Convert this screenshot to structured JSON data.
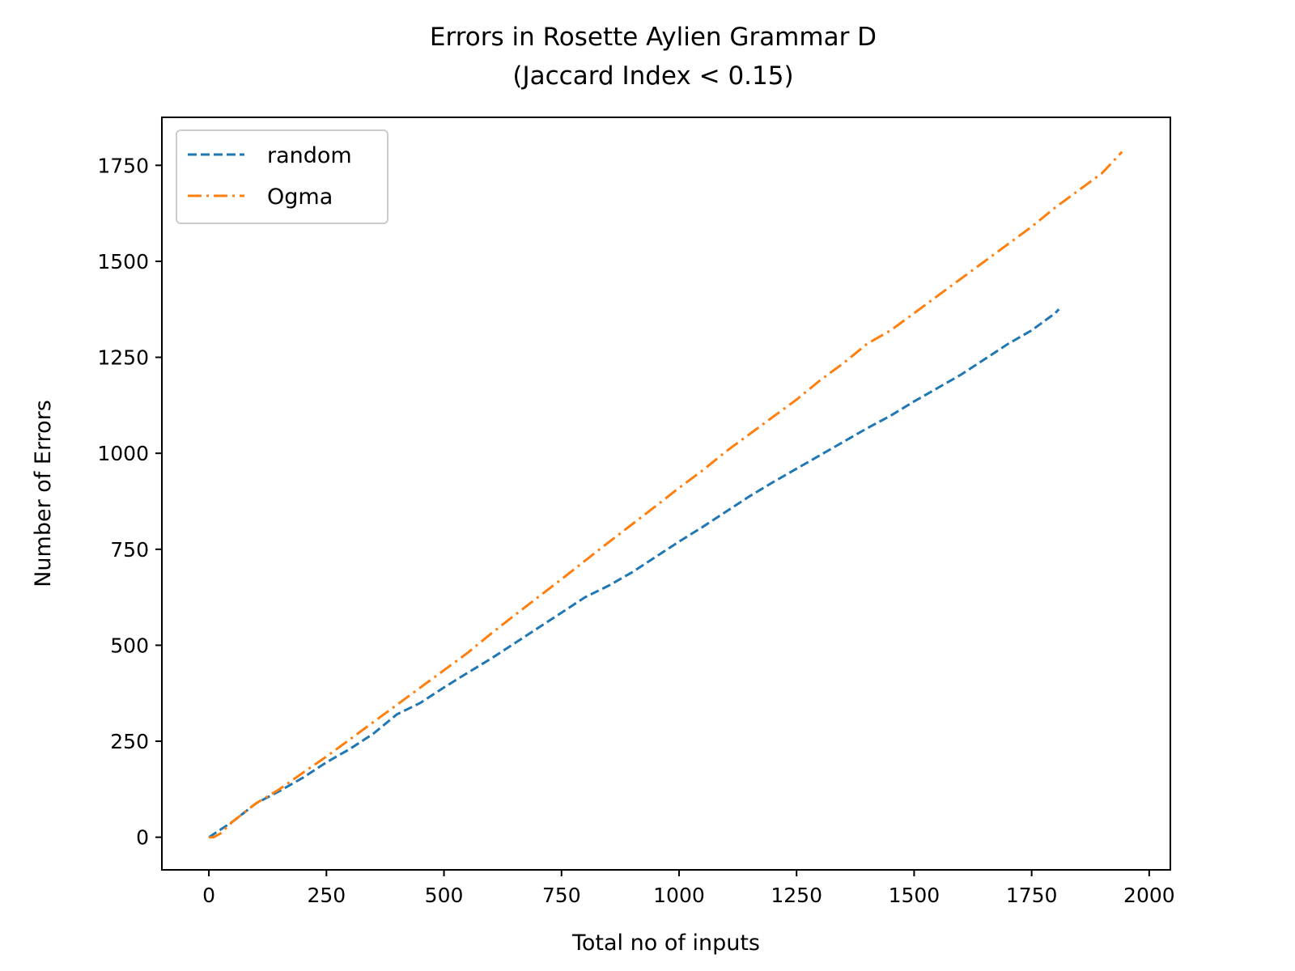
{
  "chart_data": {
    "type": "line",
    "title": "Errors in Rosette Aylien Grammar D",
    "subtitle": "(Jaccard Index < 0.15)",
    "xlabel": "Total no of inputs",
    "ylabel": "Number of Errors",
    "xlim": [
      -100,
      2045
    ],
    "ylim": [
      -85,
      1875
    ],
    "xticks": [
      0,
      250,
      500,
      750,
      1000,
      1250,
      1500,
      1750,
      2000
    ],
    "yticks": [
      0,
      250,
      500,
      750,
      1000,
      1250,
      1500,
      1750
    ],
    "xtick_labels": [
      "0",
      "250",
      "500",
      "750",
      "1000",
      "1250",
      "1500",
      "1750",
      "2000"
    ],
    "ytick_labels": [
      "0",
      "250",
      "500",
      "750",
      "1000",
      "1250",
      "1500",
      "1750"
    ],
    "grid": false,
    "legend_position": "top-left",
    "series": [
      {
        "name": "random",
        "color": "#1f77b4",
        "style": "dashed",
        "x": [
          0,
          50,
          100,
          150,
          200,
          250,
          300,
          350,
          400,
          450,
          500,
          550,
          600,
          650,
          700,
          750,
          800,
          850,
          900,
          950,
          1000,
          1050,
          1100,
          1150,
          1200,
          1250,
          1300,
          1350,
          1400,
          1450,
          1500,
          1550,
          1600,
          1650,
          1700,
          1750,
          1800,
          1808
        ],
        "y": [
          0,
          40,
          88,
          120,
          155,
          195,
          230,
          270,
          320,
          350,
          390,
          428,
          465,
          505,
          545,
          585,
          625,
          655,
          690,
          730,
          770,
          808,
          848,
          888,
          925,
          960,
          995,
          1030,
          1065,
          1098,
          1135,
          1170,
          1205,
          1245,
          1285,
          1320,
          1365,
          1375
        ]
      },
      {
        "name": "Ogma",
        "color": "#ff7f0e",
        "style": "dashdot",
        "x": [
          0,
          10,
          25,
          50,
          100,
          150,
          200,
          250,
          300,
          350,
          400,
          450,
          500,
          550,
          600,
          650,
          700,
          750,
          800,
          850,
          900,
          950,
          1000,
          1050,
          1100,
          1150,
          1200,
          1250,
          1300,
          1350,
          1400,
          1450,
          1500,
          1550,
          1600,
          1650,
          1700,
          1750,
          1800,
          1850,
          1900,
          1942
        ],
        "y": [
          0,
          0,
          10,
          40,
          88,
          125,
          168,
          210,
          255,
          300,
          345,
          390,
          435,
          480,
          530,
          578,
          625,
          672,
          720,
          768,
          815,
          862,
          910,
          955,
          1005,
          1050,
          1095,
          1140,
          1190,
          1235,
          1285,
          1320,
          1365,
          1410,
          1455,
          1500,
          1545,
          1590,
          1640,
          1685,
          1730,
          1785
        ]
      }
    ]
  }
}
